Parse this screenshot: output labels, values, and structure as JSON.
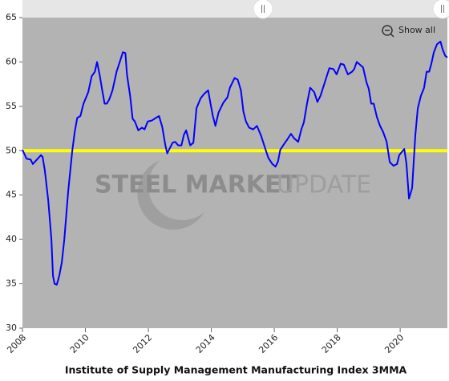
{
  "chart_data": {
    "type": "line",
    "title": "Institute of Supply Management Manufacturing Index 3MMA",
    "watermark": [
      "STEEL MARKET",
      "UPDATE"
    ],
    "button": "Show all",
    "color": "#0000ff",
    "reference_line": {
      "value": 50,
      "color": "#ffff00"
    },
    "x": [
      2008.0,
      2008.13,
      2008.26,
      2008.33,
      2008.51,
      2008.59,
      2008.64,
      2008.71,
      2008.82,
      2008.92,
      2008.97,
      2009.02,
      2009.09,
      2009.17,
      2009.25,
      2009.33,
      2009.45,
      2009.58,
      2009.66,
      2009.74,
      2009.84,
      2009.94,
      2010.09,
      2010.2,
      2010.3,
      2010.37,
      2010.45,
      2010.53,
      2010.61,
      2010.68,
      2010.76,
      2010.86,
      2010.99,
      2011.11,
      2011.19,
      2011.27,
      2011.32,
      2011.42,
      2011.5,
      2011.57,
      2011.68,
      2011.8,
      2011.88,
      2011.98,
      2012.11,
      2012.24,
      2012.34,
      2012.44,
      2012.54,
      2012.6,
      2012.67,
      2012.77,
      2012.85,
      2012.95,
      2013.05,
      2013.13,
      2013.2,
      2013.33,
      2013.43,
      2013.53,
      2013.66,
      2013.77,
      2013.9,
      2013.97,
      2014.05,
      2014.13,
      2014.23,
      2014.38,
      2014.51,
      2014.59,
      2014.74,
      2014.84,
      2014.94,
      2015.02,
      2015.1,
      2015.2,
      2015.33,
      2015.45,
      2015.58,
      2015.68,
      2015.81,
      2015.94,
      2016.04,
      2016.12,
      2016.19,
      2016.32,
      2016.42,
      2016.53,
      2016.63,
      2016.76,
      2016.86,
      2016.94,
      2017.04,
      2017.14,
      2017.27,
      2017.37,
      2017.47,
      2017.55,
      2017.65,
      2017.75,
      2017.88,
      2017.98,
      2018.11,
      2018.21,
      2018.34,
      2018.47,
      2018.54,
      2018.62,
      2018.72,
      2018.82,
      2018.93,
      2019.0,
      2019.08,
      2019.16,
      2019.26,
      2019.36,
      2019.46,
      2019.57,
      2019.67,
      2019.79,
      2019.9,
      2019.97,
      2020.13,
      2020.2,
      2020.28,
      2020.38,
      2020.48,
      2020.56,
      2020.66,
      2020.76,
      2020.84,
      2020.92,
      2020.99,
      2021.07,
      2021.17,
      2021.28,
      2021.35,
      2021.43,
      2021.5
    ],
    "values": [
      50.1,
      49.1,
      49,
      48.5,
      49.2,
      49.5,
      49.3,
      47.8,
      44.4,
      40,
      35.9,
      35,
      34.9,
      35.9,
      37.4,
      40,
      45.3,
      49.9,
      52.1,
      53.7,
      53.9,
      55.3,
      56.6,
      58.4,
      58.9,
      60,
      58.6,
      56.9,
      55.3,
      55.3,
      55.8,
      56.8,
      58.9,
      60.2,
      61.1,
      61,
      58.6,
      56.2,
      53.6,
      53.3,
      52.3,
      52.6,
      52.4,
      53.3,
      53.4,
      53.7,
      53.9,
      52.7,
      50.6,
      49.7,
      50.2,
      50.9,
      51,
      50.6,
      50.6,
      51.8,
      52.3,
      50.6,
      50.9,
      54.8,
      55.9,
      56.4,
      56.8,
      55.4,
      53.9,
      52.8,
      54.3,
      55.4,
      56,
      57.1,
      58.2,
      58,
      56.8,
      54.4,
      53.3,
      52.6,
      52.4,
      52.8,
      51.7,
      50.6,
      49.2,
      48.5,
      48.2,
      48.8,
      50.1,
      50.8,
      51.3,
      51.9,
      51.4,
      51,
      52.4,
      53.2,
      55.3,
      57.1,
      56.6,
      55.5,
      56.2,
      57.1,
      58.2,
      59.3,
      59.2,
      58.6,
      59.8,
      59.7,
      58.6,
      58.9,
      59.2,
      60,
      59.7,
      59.4,
      57.7,
      57,
      55.3,
      55.3,
      53.8,
      52.8,
      52.1,
      51,
      48.7,
      48.3,
      48.5,
      49.5,
      50.2,
      48.5,
      44.6,
      45.8,
      51.7,
      54.8,
      56.2,
      57.1,
      58.9,
      58.9,
      59.8,
      61.1,
      62,
      62.3,
      61.4,
      60.7,
      60.5
    ],
    "xlim": [
      2008,
      2021.5
    ],
    "xticks": [
      2008,
      2010,
      2012,
      2014,
      2016,
      2018,
      2020
    ],
    "ylim": [
      30,
      65
    ],
    "yticks": [
      30,
      35,
      40,
      45,
      50,
      55,
      60,
      65
    ]
  }
}
